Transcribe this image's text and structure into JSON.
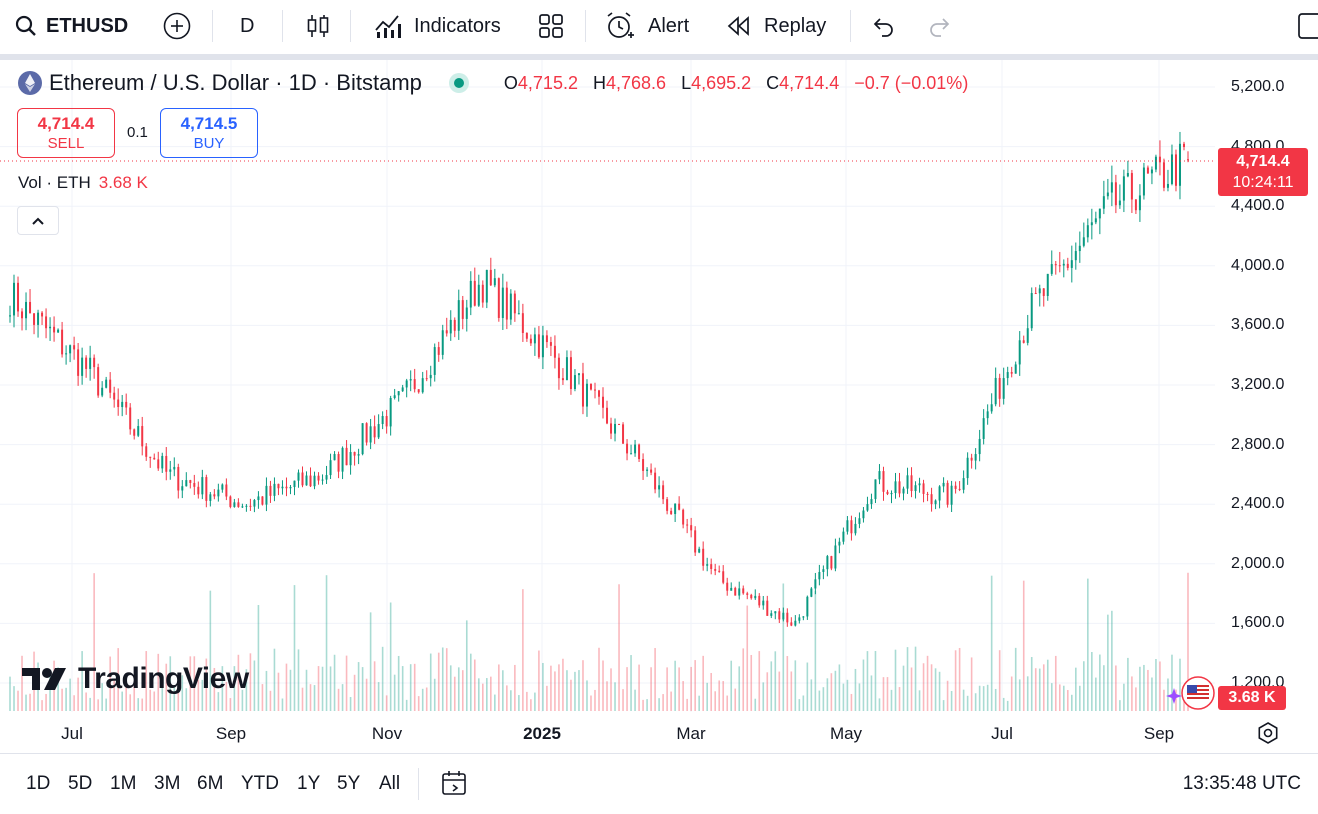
{
  "toolbar": {
    "symbol": "ETHUSD",
    "interval": "D",
    "indicators_label": "Indicators",
    "alert_label": "Alert",
    "replay_label": "Replay"
  },
  "legend": {
    "title": "Ethereum / U.S. Dollar · 1D · Bitstamp",
    "o_key": "O",
    "o": "4,715.2",
    "h_key": "H",
    "h": "4,768.6",
    "l_key": "L",
    "l": "4,695.2",
    "c_key": "C",
    "c": "4,714.4",
    "change": "−0.7 (−0.01%)"
  },
  "trade": {
    "sell_price": "4,714.4",
    "sell_label": "SELL",
    "spread": "0.1",
    "buy_price": "4,714.5",
    "buy_label": "BUY"
  },
  "volume": {
    "label": "Vol · ETH",
    "value": "3.68 K"
  },
  "brand": {
    "name": "TradingView"
  },
  "price_badge": {
    "price": "4,714.4",
    "countdown": "10:24:11"
  },
  "volume_badge": "3.68 K",
  "price_axis": [
    "5,200.0",
    "4,800.0",
    "4,400.0",
    "4,000.0",
    "3,600.0",
    "3,200.0",
    "2,800.0",
    "2,400.0",
    "2,000.0",
    "1,600.0",
    "1,200.0"
  ],
  "time_axis": [
    "Jul",
    "Sep",
    "Nov",
    "2025",
    "Mar",
    "May",
    "Jul",
    "Sep"
  ],
  "ranges": [
    "1D",
    "5D",
    "1M",
    "3M",
    "6M",
    "YTD",
    "1Y",
    "5Y",
    "All"
  ],
  "clock": "13:35:48 UTC",
  "colors": {
    "up": "#089981",
    "down": "#f23645",
    "accent": "#2962ff"
  },
  "chart_data": {
    "type": "candlestick",
    "title": "Ethereum / U.S. Dollar · 1D · Bitstamp",
    "ylim": [
      1200,
      5200
    ],
    "x_labels": [
      "Jul",
      "Sep",
      "Nov",
      "2025",
      "Mar",
      "May",
      "Jul",
      "Sep"
    ],
    "close_trajectory": [
      {
        "date": "Jun 2024",
        "close": 3800
      },
      {
        "date": "Jul 2024",
        "close": 3300
      },
      {
        "date": "Aug 2024",
        "close": 2600
      },
      {
        "date": "Sep 2024",
        "close": 2400
      },
      {
        "date": "Oct 2024",
        "close": 2600
      },
      {
        "date": "Nov 2024",
        "close": 3100
      },
      {
        "date": "Dec 2024",
        "close": 3900
      },
      {
        "date": "Jan 2025",
        "close": 3350
      },
      {
        "date": "Feb 2025",
        "close": 2700
      },
      {
        "date": "Mar 2025",
        "close": 1900
      },
      {
        "date": "Apr 2025",
        "close": 1600
      },
      {
        "date": "May 2025",
        "close": 2550
      },
      {
        "date": "Jun 2025",
        "close": 2450
      },
      {
        "date": "Jul 2025",
        "close": 3700
      },
      {
        "date": "Aug 2025",
        "close": 4400
      },
      {
        "date": "Sep 2025",
        "close": 4714.4
      }
    ],
    "last": {
      "open": 4715.2,
      "high": 4768.6,
      "low": 4695.2,
      "close": 4714.4
    }
  }
}
